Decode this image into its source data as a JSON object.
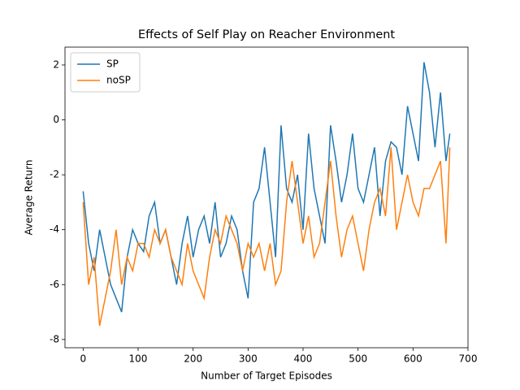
{
  "chart_data": {
    "type": "line",
    "title": "Effects of Self Play on Reacher Environment",
    "x_label": "Number of Target Episodes",
    "y_label": "Average Return",
    "x": [
      0,
      10,
      20,
      30,
      40,
      50,
      60,
      70,
      80,
      90,
      100,
      110,
      120,
      130,
      140,
      150,
      160,
      170,
      180,
      190,
      200,
      210,
      220,
      230,
      240,
      250,
      260,
      270,
      280,
      290,
      300,
      310,
      320,
      330,
      340,
      350,
      360,
      370,
      380,
      390,
      400,
      410,
      420,
      430,
      440,
      450,
      460,
      470,
      480,
      490,
      500,
      510,
      520,
      530,
      540,
      550,
      560,
      570,
      580,
      590,
      600,
      610,
      620,
      630,
      640,
      650,
      660,
      667
    ],
    "series": [
      {
        "name": "SP",
        "color": "#1f77b4",
        "values": [
          -2.6,
          -4.5,
          -5.5,
          -4.0,
          -5.0,
          -6.0,
          -6.5,
          -7.0,
          -5.0,
          -4.0,
          -4.5,
          -4.8,
          -3.5,
          -3.0,
          -4.5,
          -4.0,
          -5.0,
          -6.0,
          -4.5,
          -3.5,
          -5.0,
          -4.0,
          -3.5,
          -4.5,
          -3.0,
          -5.0,
          -4.5,
          -3.5,
          -4.0,
          -5.5,
          -6.5,
          -3.0,
          -2.5,
          -1.0,
          -3.0,
          -5.0,
          -0.2,
          -2.5,
          -3.0,
          -2.0,
          -4.0,
          -0.5,
          -2.5,
          -3.5,
          -4.5,
          -0.2,
          -1.5,
          -3.0,
          -2.0,
          -0.5,
          -2.5,
          -3.0,
          -2.0,
          -1.0,
          -3.5,
          -1.5,
          -0.8,
          -1.0,
          -2.0,
          0.5,
          -0.5,
          -1.5,
          2.1,
          1.0,
          -1.0,
          1.0,
          -1.5,
          -0.5
        ]
      },
      {
        "name": "noSP",
        "color": "#ff7f0e",
        "values": [
          -3.0,
          -6.0,
          -5.0,
          -7.5,
          -6.5,
          -5.5,
          -4.0,
          -6.0,
          -5.0,
          -5.5,
          -4.5,
          -4.5,
          -5.0,
          -4.0,
          -4.5,
          -4.0,
          -5.0,
          -5.5,
          -6.0,
          -4.5,
          -5.5,
          -6.0,
          -6.5,
          -5.0,
          -4.0,
          -4.5,
          -3.5,
          -4.0,
          -4.5,
          -5.5,
          -4.5,
          -5.0,
          -4.5,
          -5.5,
          -4.5,
          -6.0,
          -5.5,
          -3.0,
          -1.5,
          -3.0,
          -4.5,
          -3.5,
          -5.0,
          -4.5,
          -3.0,
          -1.5,
          -3.5,
          -5.0,
          -4.0,
          -3.5,
          -4.5,
          -5.5,
          -4.0,
          -3.0,
          -2.5,
          -3.5,
          -1.0,
          -4.0,
          -3.0,
          -2.0,
          -3.0,
          -3.5,
          -2.5,
          -2.5,
          -2.0,
          -1.5,
          -4.5,
          -1.0
        ]
      }
    ],
    "xlim": [
      -33,
      700
    ],
    "ylim": [
      -8.3,
      2.65
    ],
    "xticks": [
      0,
      100,
      200,
      300,
      400,
      500,
      600,
      700
    ],
    "yticks": [
      -8,
      -6,
      -4,
      -2,
      0,
      2
    ],
    "legend": "upper left"
  }
}
